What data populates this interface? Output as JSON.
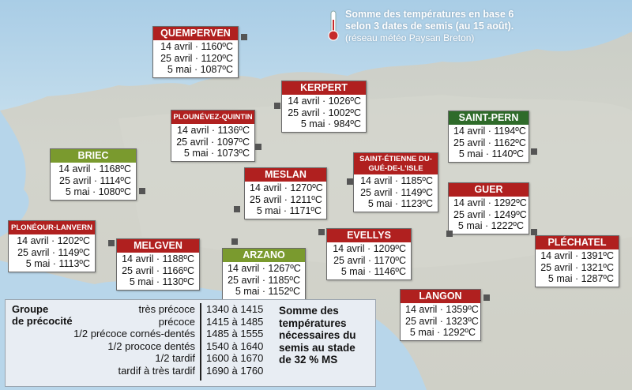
{
  "legend": {
    "title_line1": "Somme des températures en base 6",
    "title_line2": "selon 3 dates de semis (au 15 août).",
    "subtitle": "(réseau météo Paysan Breton)"
  },
  "stations": [
    {
      "name": "QUEMPERVEN",
      "color": "#b0201f",
      "rows": [
        "14 avril · 1160ºC",
        "25 avril · 1120ºC",
        "5 mai · 1087ºC"
      ]
    },
    {
      "name": "KERPERT",
      "color": "#b0201f",
      "rows": [
        "14 avril · 1026ºC",
        "25 avril · 1002ºC",
        "5 mai · 984ºC"
      ]
    },
    {
      "name": "PLOUNÉVEZ-QUINTIN",
      "color": "#b0201f",
      "rows": [
        "14 avril · 1136ºC",
        "25 avril · 1097ºC",
        "5 mai · 1073ºC"
      ]
    },
    {
      "name": "SAINT-PERN",
      "color": "#2f6b2a",
      "rows": [
        "14 avril · 1194ºC",
        "25 avril · 1162ºC",
        "5 mai · 1140ºC"
      ]
    },
    {
      "name": "BRIEC",
      "color": "#7a9a2e",
      "rows": [
        "14 avril · 1168ºC",
        "25 avril · 1114ºC",
        "5 mai · 1080ºC"
      ]
    },
    {
      "name": "SAINT-ÉTIENNE DU-GUÉ-DE-L'ISLE",
      "color": "#b0201f",
      "rows": [
        "14 avril · 1185ºC",
        "25 avril · 1149ºC",
        "5 mai · 1123ºC"
      ]
    },
    {
      "name": "MESLAN",
      "color": "#b0201f",
      "rows": [
        "14 avril · 1270ºC",
        "25 avril · 1211ºC",
        "5 mai · 1171ºC"
      ]
    },
    {
      "name": "GUER",
      "color": "#b0201f",
      "rows": [
        "14 avril · 1292ºC",
        "25 avril · 1249ºC",
        "5 mai · 1222ºC"
      ]
    },
    {
      "name": "PLONÉOUR-LANVERN",
      "color": "#b0201f",
      "rows": [
        "14 avril · 1202ºC",
        "25 avril · 1149ºC",
        "5 mai · 1113ºC"
      ]
    },
    {
      "name": "MELGVEN",
      "color": "#b0201f",
      "rows": [
        "14 avril · 1188ºC",
        "25 avril · 1166ºC",
        "5 mai · 1130ºC"
      ]
    },
    {
      "name": "ARZANO",
      "color": "#7a9a2e",
      "rows": [
        "14 avril · 1267ºC",
        "25 avril · 1185ºC",
        "5 mai · 1152ºC"
      ]
    },
    {
      "name": "EVELLYS",
      "color": "#b0201f",
      "rows": [
        "14 avril · 1209ºC",
        "25 avril · 1170ºC",
        "5 mai · 1146ºC"
      ]
    },
    {
      "name": "PLÉCHATEL",
      "color": "#b0201f",
      "rows": [
        "14 avril · 1391ºC",
        "25 avril · 1321ºC",
        "5 mai · 1287ºC"
      ]
    },
    {
      "name": "LANGON",
      "color": "#b0201f",
      "rows": [
        "14 avril · 1359ºC",
        "25 avril · 1323ºC",
        "5 mai · 1292ºC"
      ]
    }
  ],
  "groups": {
    "title_line1": "Groupe",
    "title_line2": "de précocité",
    "items": [
      {
        "label": "très précoce",
        "range": "1340 à 1415"
      },
      {
        "label": "précoce",
        "range": "1415 à 1485"
      },
      {
        "label": "1/2 précoce cornés-dentés",
        "range": "1485 à 1555"
      },
      {
        "label": "1/2 prococe dentés",
        "range": "1540 à 1640"
      },
      {
        "label": "1/2 tardif",
        "range": "1600 à 1670"
      },
      {
        "label": "tardif à très tardif",
        "range": "1690 à 1760"
      }
    ],
    "note_lines": [
      "Somme des",
      "températures",
      "nécessaires du",
      "semis au stade",
      "de 32 % MS"
    ]
  }
}
